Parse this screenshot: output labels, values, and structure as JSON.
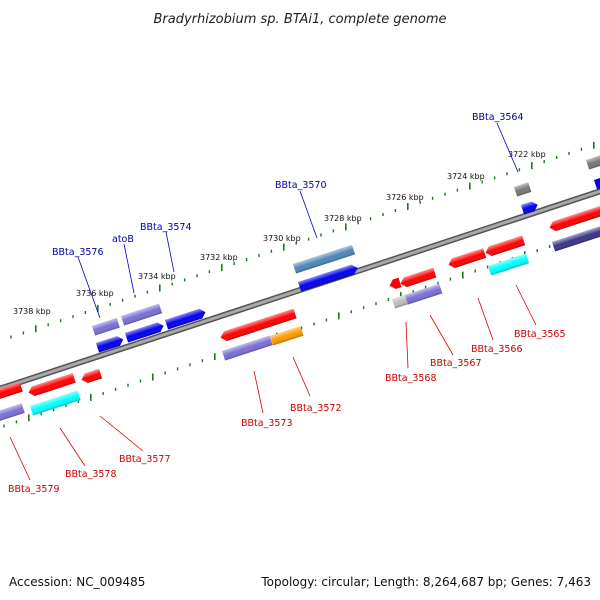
{
  "title": "Bradyrhizobium sp. BTAi1, complete genome",
  "footer": {
    "accession": "Accession: NC_009485",
    "summary": "Topology: circular; Length: 8,264,687 bp; Genes: 7,463"
  },
  "colors": {
    "red": "#ff0000",
    "blue": "#0000ee",
    "slate": "#7a6fd6",
    "cyan": "#00ffff",
    "orange": "#ff9900",
    "grey": "#777777",
    "lightgrey": "#bbbbbb",
    "navy": "#3a3388",
    "steel": "#4f86b8",
    "tick": "#1a7a1a",
    "backbone": "#8a8a8a"
  },
  "ticks": [
    {
      "label": "3738 kbp"
    },
    {
      "label": "3736 kbp"
    },
    {
      "label": "3734 kbp"
    },
    {
      "label": "3732 kbp"
    },
    {
      "label": "3730 kbp"
    },
    {
      "label": "3728 kbp"
    },
    {
      "label": "3726 kbp"
    },
    {
      "label": "3724 kbp"
    },
    {
      "label": "3722 kbp"
    }
  ],
  "top_labels": [
    "BBta_3576",
    "atoB",
    "BBta_3574",
    "BBta_3570",
    "BBta_3564"
  ],
  "bottom_labels": [
    "BBta_3579",
    "BBta_3578",
    "BBta_3577",
    "BBta_3573",
    "BBta_3572",
    "BBta_3568",
    "BBta_3567",
    "BBta_3566",
    "BBta_3565"
  ]
}
